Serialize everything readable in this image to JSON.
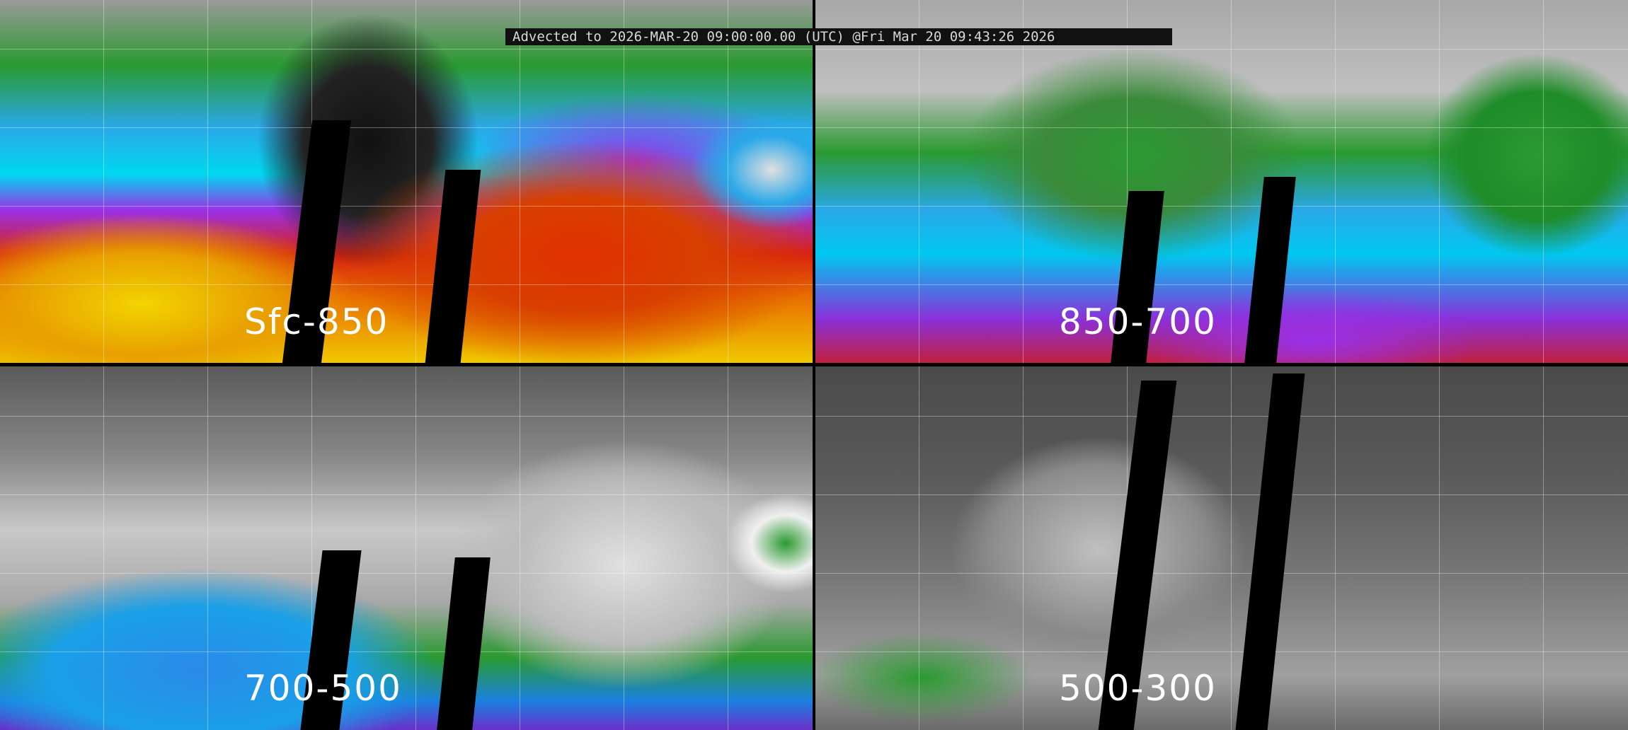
{
  "header": {
    "title": "Advected to 2026-MAR-20 09:00:00.00 (UTC) @Fri Mar 20 09:43:26 2026"
  },
  "panels": [
    {
      "label": "Sfc-850"
    },
    {
      "label": "850-700"
    },
    {
      "label": "700-500"
    },
    {
      "label": "500-300"
    }
  ]
}
